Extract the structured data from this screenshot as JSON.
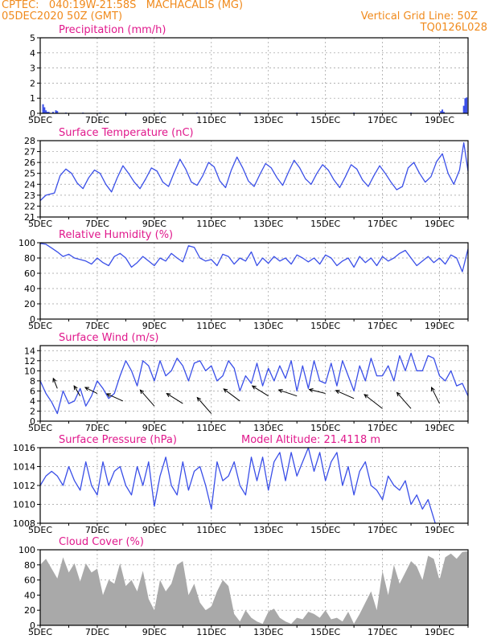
{
  "header": {
    "line1": "CPTEC:   040:19W-21:58S   MACHACALIS (MG)",
    "line2": "05DEC2020 50Z (GMT)",
    "vertical_grid": "Vertical Grid Line: 50Z",
    "code": "TQ0126L028",
    "accent_color": "#f08a1c",
    "title_color": "#e0188c",
    "series_color": "#3a4fe8",
    "cloud_color": "#a9a9a9"
  },
  "x_ticks": [
    "5DEC",
    "7DEC",
    "9DEC",
    "11DEC",
    "13DEC",
    "15DEC",
    "17DEC",
    "19DEC"
  ],
  "x_range_days": [
    5,
    20
  ],
  "chart_data": [
    {
      "id": "precip",
      "type": "bar",
      "title": "Precipitation (mm/h)",
      "ylim": [
        0,
        5
      ],
      "yticks": [
        0,
        1,
        2,
        3,
        4,
        5
      ],
      "grid": true,
      "x": [
        5.1,
        5.15,
        5.2,
        5.25,
        5.3,
        5.45,
        5.55,
        5.6,
        5.9,
        6.5,
        7.1,
        8.0,
        9.2,
        10.5,
        12.0,
        14.0,
        16.0,
        18.0,
        19.05,
        19.1,
        19.15,
        19.85,
        19.9,
        19.95
      ],
      "values": [
        0.6,
        0.4,
        0.2,
        0.1,
        0.1,
        0.1,
        0.2,
        0.15,
        0.05,
        0.05,
        0.05,
        0.05,
        0.05,
        0.05,
        0.05,
        0.05,
        0.05,
        0.05,
        0.15,
        0.25,
        0.1,
        0.5,
        1.0,
        1.05
      ]
    },
    {
      "id": "temp",
      "type": "line",
      "title": "Surface Temperature (nC)",
      "ylim": [
        21,
        28
      ],
      "yticks": [
        21,
        22,
        23,
        24,
        25,
        26,
        27,
        28
      ],
      "grid": true,
      "x": [
        5.0,
        5.2,
        5.5,
        5.7,
        5.9,
        6.1,
        6.3,
        6.5,
        6.7,
        6.9,
        7.1,
        7.3,
        7.5,
        7.7,
        7.9,
        8.1,
        8.3,
        8.5,
        8.7,
        8.9,
        9.1,
        9.3,
        9.5,
        9.7,
        9.9,
        10.1,
        10.3,
        10.5,
        10.7,
        10.9,
        11.1,
        11.3,
        11.5,
        11.7,
        11.9,
        12.1,
        12.3,
        12.5,
        12.7,
        12.9,
        13.1,
        13.3,
        13.5,
        13.7,
        13.9,
        14.1,
        14.3,
        14.5,
        14.7,
        14.9,
        15.1,
        15.3,
        15.5,
        15.7,
        15.9,
        16.1,
        16.3,
        16.5,
        16.7,
        16.9,
        17.1,
        17.3,
        17.5,
        17.7,
        17.9,
        18.1,
        18.3,
        18.5,
        18.7,
        18.9,
        19.1,
        19.3,
        19.5,
        19.7,
        19.85,
        20.0
      ],
      "values": [
        22.5,
        23.0,
        23.2,
        24.8,
        25.4,
        25.0,
        24.1,
        23.6,
        24.6,
        25.3,
        25.0,
        24.0,
        23.3,
        24.6,
        25.7,
        25.0,
        24.2,
        23.6,
        24.5,
        25.5,
        25.2,
        24.2,
        23.8,
        25.1,
        26.3,
        25.4,
        24.2,
        23.9,
        24.8,
        26.0,
        25.6,
        24.3,
        23.7,
        25.3,
        26.5,
        25.5,
        24.3,
        23.8,
        24.9,
        25.9,
        25.5,
        24.6,
        23.9,
        25.1,
        26.2,
        25.5,
        24.5,
        24.0,
        25.0,
        25.8,
        25.3,
        24.4,
        23.7,
        24.7,
        25.8,
        25.4,
        24.4,
        23.8,
        24.8,
        25.7,
        25.0,
        24.2,
        23.5,
        23.8,
        25.5,
        26.0,
        25.0,
        24.2,
        24.7,
        26.1,
        26.8,
        25.0,
        24.0,
        25.3,
        27.8,
        25.2
      ]
    },
    {
      "id": "rh",
      "type": "line",
      "title": "Relative Humidity (%)",
      "ylim": [
        0,
        100
      ],
      "yticks": [
        0,
        20,
        40,
        60,
        80,
        100
      ],
      "grid": true,
      "x": [
        5.0,
        5.2,
        5.4,
        5.6,
        5.8,
        6.0,
        6.2,
        6.4,
        6.6,
        6.8,
        7.0,
        7.2,
        7.4,
        7.6,
        7.8,
        8.0,
        8.2,
        8.4,
        8.6,
        8.8,
        9.0,
        9.2,
        9.4,
        9.6,
        9.8,
        10.0,
        10.2,
        10.4,
        10.6,
        10.8,
        11.0,
        11.2,
        11.4,
        11.6,
        11.8,
        12.0,
        12.2,
        12.4,
        12.6,
        12.8,
        13.0,
        13.2,
        13.4,
        13.6,
        13.8,
        14.0,
        14.2,
        14.4,
        14.6,
        14.8,
        15.0,
        15.2,
        15.4,
        15.6,
        15.8,
        16.0,
        16.2,
        16.4,
        16.6,
        16.8,
        17.0,
        17.2,
        17.4,
        17.6,
        17.8,
        18.0,
        18.2,
        18.4,
        18.6,
        18.8,
        19.0,
        19.2,
        19.4,
        19.6,
        19.8,
        20.0
      ],
      "values": [
        99,
        98,
        93,
        88,
        82,
        85,
        80,
        78,
        76,
        72,
        80,
        74,
        70,
        82,
        86,
        80,
        68,
        74,
        82,
        76,
        70,
        80,
        76,
        86,
        80,
        75,
        96,
        94,
        80,
        76,
        78,
        70,
        85,
        82,
        72,
        80,
        76,
        88,
        70,
        80,
        73,
        82,
        76,
        80,
        72,
        84,
        80,
        75,
        80,
        72,
        84,
        80,
        70,
        76,
        80,
        68,
        82,
        74,
        80,
        70,
        82,
        76,
        80,
        86,
        90,
        80,
        70,
        76,
        82,
        74,
        80,
        72,
        84,
        80,
        62,
        92
      ]
    },
    {
      "id": "wind",
      "type": "line",
      "title": "Surface Wind (m/s)",
      "ylim": [
        0,
        15
      ],
      "yticks": [
        0,
        2,
        4,
        6,
        8,
        10,
        12,
        14
      ],
      "grid": true,
      "x": [
        5.0,
        5.2,
        5.4,
        5.6,
        5.8,
        6.0,
        6.2,
        6.4,
        6.6,
        6.8,
        7.0,
        7.2,
        7.4,
        7.6,
        7.8,
        8.0,
        8.2,
        8.4,
        8.6,
        8.8,
        9.0,
        9.2,
        9.4,
        9.6,
        9.8,
        10.0,
        10.2,
        10.4,
        10.6,
        10.8,
        11.0,
        11.2,
        11.4,
        11.6,
        11.8,
        12.0,
        12.2,
        12.4,
        12.6,
        12.8,
        13.0,
        13.2,
        13.4,
        13.6,
        13.8,
        14.0,
        14.2,
        14.4,
        14.6,
        14.8,
        15.0,
        15.2,
        15.4,
        15.6,
        15.8,
        16.0,
        16.2,
        16.4,
        16.6,
        16.8,
        17.0,
        17.2,
        17.4,
        17.6,
        17.8,
        18.0,
        18.2,
        18.4,
        18.6,
        18.8,
        19.0,
        19.2,
        19.4,
        19.6,
        19.8,
        20.0
      ],
      "values": [
        8.0,
        5.5,
        3.8,
        1.5,
        6.0,
        3.5,
        4.0,
        6.5,
        3.0,
        5.0,
        8.0,
        6.5,
        4.5,
        5.5,
        9.0,
        12.0,
        10.0,
        7.0,
        12.0,
        11.0,
        8.0,
        12.0,
        9.0,
        10.0,
        12.5,
        11.0,
        8.0,
        11.5,
        12.0,
        10.0,
        11.0,
        8.0,
        9.0,
        12.0,
        10.5,
        6.0,
        9.0,
        7.5,
        11.5,
        7.0,
        10.5,
        8.0,
        11.0,
        8.5,
        12.0,
        6.0,
        11.0,
        6.5,
        12.0,
        8.0,
        7.5,
        11.5,
        7.0,
        12.0,
        9.0,
        6.0,
        11.0,
        8.0,
        12.5,
        9.0,
        9.0,
        11.0,
        8.0,
        13.0,
        10.0,
        13.5,
        10.0,
        10.0,
        13.0,
        12.5,
        9.0,
        8.0,
        10.0,
        7.0,
        7.5,
        5.0
      ],
      "arrows": [
        {
          "x": 5.6,
          "y": 6.5,
          "u": -1.0,
          "v": 2.5
        },
        {
          "x": 6.4,
          "y": 5.0,
          "u": -1.5,
          "v": 2.5
        },
        {
          "x": 7.0,
          "y": 5.5,
          "u": -3.0,
          "v": 1.5
        },
        {
          "x": 7.9,
          "y": 4.0,
          "u": -4.0,
          "v": 1.8
        },
        {
          "x": 9.0,
          "y": 3.0,
          "u": -3.5,
          "v": 4.0
        },
        {
          "x": 10.0,
          "y": 3.5,
          "u": -4.0,
          "v": 2.5
        },
        {
          "x": 11.0,
          "y": 1.5,
          "u": -3.5,
          "v": 4.0
        },
        {
          "x": 12.0,
          "y": 4.0,
          "u": -4.0,
          "v": 3.0
        },
        {
          "x": 13.0,
          "y": 5.0,
          "u": -4.0,
          "v": 2.5
        },
        {
          "x": 14.0,
          "y": 5.0,
          "u": -4.5,
          "v": 1.5
        },
        {
          "x": 15.0,
          "y": 5.5,
          "u": -4.0,
          "v": 1.0
        },
        {
          "x": 16.0,
          "y": 4.5,
          "u": -4.5,
          "v": 2.0
        },
        {
          "x": 17.0,
          "y": 2.5,
          "u": -4.5,
          "v": 3.5
        },
        {
          "x": 18.0,
          "y": 2.5,
          "u": -3.5,
          "v": 4.0
        },
        {
          "x": 19.0,
          "y": 3.5,
          "u": -2.0,
          "v": 4.0
        }
      ]
    },
    {
      "id": "pressure",
      "type": "line",
      "title": "Surface Pressure (hPa)",
      "annotation": "Model Altitude: 21.4118 m",
      "ylim": [
        1008,
        1016
      ],
      "yticks": [
        1008,
        1010,
        1012,
        1014,
        1016
      ],
      "grid": true,
      "x": [
        5.0,
        5.2,
        5.4,
        5.6,
        5.8,
        6.0,
        6.2,
        6.4,
        6.6,
        6.8,
        7.0,
        7.2,
        7.4,
        7.6,
        7.8,
        8.0,
        8.2,
        8.4,
        8.6,
        8.8,
        9.0,
        9.2,
        9.4,
        9.6,
        9.8,
        10.0,
        10.2,
        10.4,
        10.6,
        10.8,
        11.0,
        11.2,
        11.4,
        11.6,
        11.8,
        12.0,
        12.2,
        12.4,
        12.6,
        12.8,
        13.0,
        13.2,
        13.4,
        13.6,
        13.8,
        14.0,
        14.2,
        14.4,
        14.6,
        14.8,
        15.0,
        15.2,
        15.4,
        15.6,
        15.8,
        16.0,
        16.2,
        16.4,
        16.6,
        16.8,
        17.0,
        17.2,
        17.4,
        17.6,
        17.8,
        18.0,
        18.2,
        18.4,
        18.6,
        18.85
      ],
      "values": [
        1012.0,
        1013.0,
        1013.5,
        1013.0,
        1012.0,
        1014.0,
        1012.5,
        1011.5,
        1014.5,
        1012.0,
        1011.0,
        1014.5,
        1012.0,
        1013.5,
        1014.0,
        1012.0,
        1011.0,
        1014.0,
        1012.0,
        1014.5,
        1009.8,
        1013.0,
        1015.0,
        1012.0,
        1011.0,
        1014.5,
        1011.5,
        1013.5,
        1014.0,
        1012.0,
        1009.5,
        1014.5,
        1012.5,
        1013.0,
        1014.5,
        1012.0,
        1011.0,
        1015.0,
        1012.5,
        1015.0,
        1011.5,
        1014.5,
        1015.5,
        1012.5,
        1015.5,
        1013.0,
        1014.5,
        1016.0,
        1013.5,
        1015.5,
        1012.5,
        1014.5,
        1015.5,
        1012.0,
        1014.0,
        1011.0,
        1013.5,
        1014.5,
        1012.0,
        1011.5,
        1010.5,
        1013.0,
        1012.0,
        1011.5,
        1012.5,
        1010.0,
        1011.0,
        1009.5,
        1010.5,
        1008.0
      ]
    },
    {
      "id": "cloud",
      "type": "area",
      "title": "Cloud Cover (%)",
      "ylim": [
        0,
        100
      ],
      "yticks": [
        0,
        20,
        40,
        60,
        80,
        100
      ],
      "grid": true,
      "x": [
        5.0,
        5.2,
        5.4,
        5.6,
        5.8,
        6.0,
        6.2,
        6.4,
        6.6,
        6.8,
        7.0,
        7.2,
        7.4,
        7.6,
        7.8,
        8.0,
        8.2,
        8.4,
        8.6,
        8.8,
        9.0,
        9.2,
        9.4,
        9.6,
        9.8,
        10.0,
        10.2,
        10.4,
        10.6,
        10.8,
        11.0,
        11.2,
        11.4,
        11.6,
        11.8,
        12.0,
        12.2,
        12.4,
        12.6,
        12.8,
        13.0,
        13.2,
        13.4,
        13.6,
        13.8,
        14.0,
        14.2,
        14.4,
        14.6,
        14.8,
        15.0,
        15.2,
        15.4,
        15.6,
        15.8,
        16.0,
        16.2,
        16.4,
        16.6,
        16.8,
        17.0,
        17.2,
        17.4,
        17.6,
        17.8,
        18.0,
        18.2,
        18.4,
        18.6,
        18.8,
        19.0,
        19.2,
        19.4,
        19.6,
        19.8,
        20.0
      ],
      "values": [
        80,
        88,
        75,
        62,
        90,
        70,
        82,
        58,
        82,
        70,
        75,
        40,
        60,
        55,
        82,
        52,
        60,
        45,
        72,
        35,
        20,
        60,
        45,
        55,
        80,
        85,
        40,
        55,
        30,
        20,
        25,
        45,
        60,
        52,
        15,
        5,
        20,
        10,
        5,
        2,
        18,
        22,
        10,
        5,
        2,
        10,
        8,
        18,
        15,
        10,
        20,
        8,
        10,
        5,
        18,
        2,
        15,
        30,
        45,
        20,
        72,
        40,
        80,
        55,
        70,
        85,
        78,
        60,
        92,
        88,
        60,
        90,
        95,
        88,
        97,
        98
      ]
    }
  ]
}
